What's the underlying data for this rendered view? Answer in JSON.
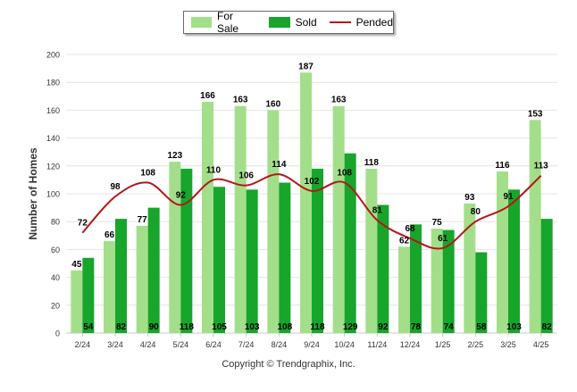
{
  "chart_data": {
    "type": "bar",
    "categories": [
      "2/24",
      "3/24",
      "4/24",
      "5/24",
      "6/24",
      "7/24",
      "8/24",
      "9/24",
      "10/24",
      "11/24",
      "12/24",
      "1/25",
      "2/25",
      "3/25",
      "4/25"
    ],
    "series": [
      {
        "name": "For Sale",
        "type": "bar",
        "color": "#a3df8a",
        "values": [
          45,
          66,
          77,
          123,
          166,
          163,
          160,
          187,
          163,
          118,
          62,
          75,
          93,
          116,
          153
        ]
      },
      {
        "name": "Sold",
        "type": "bar",
        "color": "#17a52c",
        "values": [
          54,
          82,
          90,
          118,
          105,
          103,
          108,
          118,
          129,
          92,
          78,
          74,
          58,
          103,
          82
        ]
      },
      {
        "name": "Pended",
        "type": "line",
        "color": "#b5161b",
        "values": [
          72,
          98,
          108,
          92,
          110,
          106,
          114,
          102,
          108,
          81,
          68,
          61,
          80,
          91,
          113
        ]
      }
    ],
    "ylabel": "Number of Homes",
    "ylim": [
      0,
      200
    ],
    "yticks": [
      0,
      20,
      40,
      60,
      80,
      100,
      120,
      140,
      160,
      180,
      200
    ],
    "grid": true,
    "legend": "top-center"
  },
  "footer": {
    "copyright": "Copyright © Trendgraphix, Inc."
  }
}
